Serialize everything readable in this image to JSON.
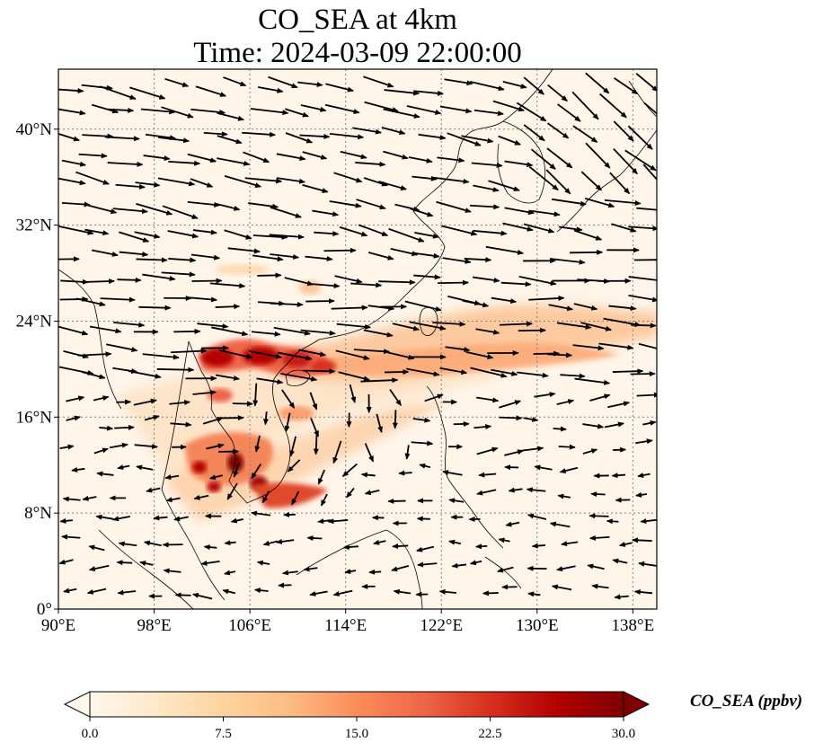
{
  "figure": {
    "title_line1": "CO_SEA at 4km",
    "title_line2": "Time: 2024-03-09 22:00:00"
  },
  "map": {
    "lon_range": [
      90,
      140
    ],
    "lat_range": [
      0,
      45
    ],
    "lon_ticks": [
      {
        "value": 90,
        "label": "90°E"
      },
      {
        "value": 98,
        "label": "98°E"
      },
      {
        "value": 106,
        "label": "106°E"
      },
      {
        "value": 114,
        "label": "114°E"
      },
      {
        "value": 122,
        "label": "122°E"
      },
      {
        "value": 130,
        "label": "130°E"
      },
      {
        "value": 138,
        "label": "138°E"
      }
    ],
    "lat_ticks": [
      {
        "value": 0,
        "label": "0°"
      },
      {
        "value": 8,
        "label": "8°N"
      },
      {
        "value": 16,
        "label": "16°N"
      },
      {
        "value": 24,
        "label": "24°N"
      },
      {
        "value": 32,
        "label": "32°N"
      },
      {
        "value": 40,
        "label": "40°N"
      }
    ],
    "gridlines": true,
    "plume_color_max": "#7f0000",
    "coastline_color": "#000000"
  },
  "colorbar": {
    "label": "CO_SEA (ppbv)",
    "min": 0.0,
    "max": 30.0,
    "ticks": [
      {
        "value": 0,
        "label": "0.0"
      },
      {
        "value": 7.5,
        "label": "7.5"
      },
      {
        "value": 15,
        "label": "15.0"
      },
      {
        "value": 22.5,
        "label": "22.5"
      },
      {
        "value": 30,
        "label": "30.0"
      }
    ],
    "colormap": [
      "#fff7ec",
      "#fee8c8",
      "#fdd49e",
      "#fdbb84",
      "#fc8d59",
      "#ef6548",
      "#d7301f",
      "#b30000",
      "#7f0000"
    ],
    "extend": "both"
  }
}
